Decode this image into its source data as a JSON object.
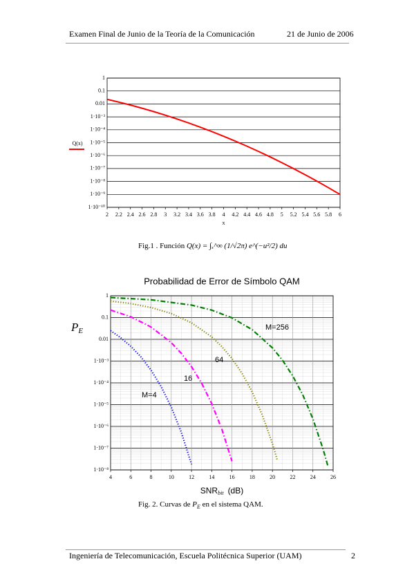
{
  "header": {
    "left": "Examen Final de Junio de la Teoría de la Comunicación",
    "right": "21 de Junio de 2006"
  },
  "figure1_caption": {
    "text": "Fig.1 . Función",
    "formula": "Q(x) = ∫ₓ^∞ (1/√2π) e^(−u²/2) du"
  },
  "figure2_caption": {
    "before": "Fig. 2. Curvas de",
    "symbol": "P",
    "sub": "E",
    "after": "en el sistema QAM."
  },
  "footer": {
    "left": "Ingeniería de Telecomunicación, Escuela Politécnica Superior (UAM)",
    "page": "2"
  },
  "chart_data": [
    {
      "type": "line",
      "x_label": "x",
      "log_y": true,
      "grid": true,
      "xgrid": false,
      "xlim": [
        2,
        6
      ],
      "ylim": [
        1e-10,
        1
      ],
      "xticks": [
        2,
        2.2,
        2.4,
        2.6,
        2.8,
        3,
        3.2,
        3.4,
        3.6,
        3.8,
        4,
        4.2,
        4.4,
        4.6,
        4.8,
        5,
        5.2,
        5.4,
        5.6,
        5.8,
        6
      ],
      "yticks": [
        1,
        0.1,
        0.01,
        {
          "value": 0.001,
          "label": "1·10⁻³"
        },
        {
          "value": 0.0001,
          "label": "1·10⁻⁴"
        },
        {
          "value": 1e-05,
          "label": "1·10⁻⁵"
        },
        {
          "value": 1e-06,
          "label": "1·10⁻⁶"
        },
        {
          "value": 1e-07,
          "label": "1·10⁻⁷"
        },
        {
          "value": 1e-08,
          "label": "1·10⁻⁸"
        },
        {
          "value": 1e-09,
          "label": "1·10⁻⁹"
        },
        {
          "value": 1e-10,
          "label": "1·10⁻¹⁰"
        }
      ],
      "series": [
        {
          "name": "Q(x)",
          "color": "#ff0000",
          "line_style": "solid",
          "x": [
            2,
            2.2,
            2.4,
            2.6,
            2.8,
            3,
            3.2,
            3.4,
            3.6,
            3.8,
            4,
            4.2,
            4.4,
            4.6,
            4.8,
            5,
            5.2,
            5.4,
            5.6,
            5.8,
            6
          ],
          "values": [
            0.02275,
            0.0139,
            0.008198,
            0.004661,
            0.002555,
            0.00135,
            0.0006871,
            0.0003369,
            0.0001591,
            7.235e-05,
            3.167e-05,
            1.335e-05,
            5.413e-06,
            2.112e-06,
            7.933e-07,
            2.867e-07,
            9.964e-08,
            3.332e-08,
            1.072e-08,
            3.316e-09,
            9.866e-10
          ]
        }
      ]
    },
    {
      "type": "line",
      "title": "Probabilidad de Error de Símbolo QAM",
      "y_label": {
        "symbol": "P",
        "sub": "E"
      },
      "x_label": {
        "main": "SNR",
        "sub": "bit",
        "unit": "(dB)"
      },
      "log_y": true,
      "grid": true,
      "xgrid": true,
      "minor_grid": true,
      "xlim": [
        4,
        26
      ],
      "ylim": [
        1e-08,
        1
      ],
      "xticks": [
        4,
        6,
        8,
        10,
        12,
        14,
        16,
        18,
        20,
        22,
        24,
        26
      ],
      "yticks": [
        1,
        0.1,
        0.01,
        {
          "value": 0.001,
          "label": "1·10⁻³"
        },
        {
          "value": 0.0001,
          "label": "1·10⁻⁴"
        },
        {
          "value": 1e-05,
          "label": "1·10⁻⁵"
        },
        {
          "value": 1e-06,
          "label": "1·10⁻⁶"
        },
        {
          "value": 1e-07,
          "label": "1·10⁻⁷"
        },
        {
          "value": 1e-08,
          "label": "1·10⁻⁸"
        }
      ],
      "series": [
        {
          "name": "M=4",
          "color": "#0000ff",
          "line_style": "dotted",
          "x": [
            4,
            5,
            6,
            7,
            8,
            9,
            10,
            11,
            12
          ],
          "values": [
            0.0248,
            0.0118,
            0.0048,
            0.00155,
            0.00038,
            6.7e-05,
            7.7e-06,
            5.2e-07,
            1.8e-08
          ]
        },
        {
          "name": "16",
          "color": "#ff00ff",
          "line_style": "dashdot",
          "x": [
            4,
            6,
            8,
            10,
            11,
            12,
            13,
            14,
            15,
            16
          ],
          "values": [
            0.2208,
            0.1083,
            0.0366,
            0.007,
            0.00225,
            0.00055,
            9.7e-05,
            1.1e-05,
            7.4e-07,
            2.5e-08
          ]
        },
        {
          "name": "64",
          "color": "#808000",
          "line_style": "dotted",
          "x": [
            4,
            6,
            8,
            10,
            12,
            14,
            15,
            16,
            17,
            18,
            19,
            20,
            20.5
          ],
          "values": [
            0.574,
            0.4375,
            0.289,
            0.153,
            0.0575,
            0.0129,
            0.00462,
            0.0013,
            0.00027,
            3.8e-05,
            3.3e-06,
            1.6e-07,
            2.6e-08
          ]
        },
        {
          "name": "M=256",
          "color": "#008000",
          "line_style": "dashdot",
          "x": [
            4,
            8,
            12,
            14,
            16,
            18,
            20,
            21,
            22,
            23,
            24,
            25,
            25.5
          ],
          "values": [
            0.83,
            0.655,
            0.373,
            0.219,
            0.0966,
            0.0276,
            0.00405,
            0.00108,
            0.00021,
            2.8e-05,
            2.2e-06,
            9.2e-08,
            1.4e-08
          ]
        }
      ]
    }
  ]
}
